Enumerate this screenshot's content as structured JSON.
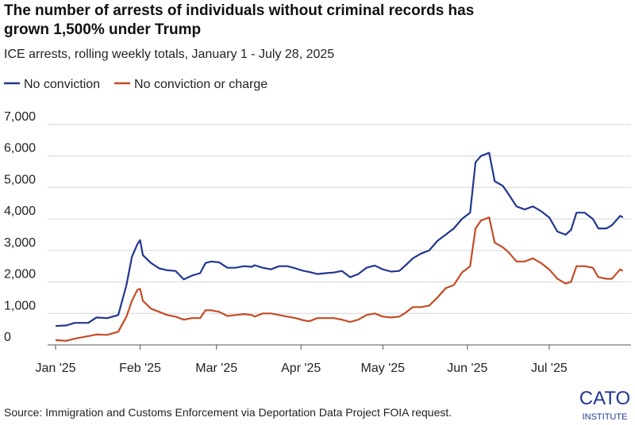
{
  "chart_data": {
    "type": "line",
    "title": "The number of arrests of individuals without criminal records has grown 1,500% under Trump",
    "subtitle": "ICE arrests, rolling weekly totals, January 1 - July 28, 2025",
    "source": "Source: Immigration and Customs Enforcement via Deportation Data Project FOIA request.",
    "logo": {
      "top": "CATO",
      "bottom": "INSTITUTE"
    },
    "x": [
      "2025-01-01",
      "2025-01-05",
      "2025-01-08",
      "2025-01-13",
      "2025-01-16",
      "2025-01-20",
      "2025-01-24",
      "2025-01-27",
      "2025-01-29",
      "2025-01-31",
      "2025-02-01",
      "2025-02-02",
      "2025-02-05",
      "2025-02-08",
      "2025-02-11",
      "2025-02-14",
      "2025-02-17",
      "2025-02-20",
      "2025-02-23",
      "2025-02-25",
      "2025-02-27",
      "2025-03-02",
      "2025-03-05",
      "2025-03-08",
      "2025-03-11",
      "2025-03-14",
      "2025-03-15",
      "2025-03-18",
      "2025-03-21",
      "2025-03-24",
      "2025-03-27",
      "2025-03-30",
      "2025-04-02",
      "2025-04-04",
      "2025-04-07",
      "2025-04-10",
      "2025-04-13",
      "2025-04-16",
      "2025-04-19",
      "2025-04-22",
      "2025-04-25",
      "2025-04-28",
      "2025-05-01",
      "2025-05-04",
      "2025-05-07",
      "2025-05-09",
      "2025-05-12",
      "2025-05-15",
      "2025-05-18",
      "2025-05-21",
      "2025-05-24",
      "2025-05-27",
      "2025-05-30",
      "2025-06-02",
      "2025-06-04",
      "2025-06-06",
      "2025-06-09",
      "2025-06-11",
      "2025-06-14",
      "2025-06-16",
      "2025-06-19",
      "2025-06-22",
      "2025-06-25",
      "2025-06-28",
      "2025-07-01",
      "2025-07-04",
      "2025-07-07",
      "2025-07-09",
      "2025-07-11",
      "2025-07-14",
      "2025-07-17",
      "2025-07-19",
      "2025-07-22",
      "2025-07-24",
      "2025-07-27",
      "2025-07-28"
    ],
    "series": [
      {
        "name": "No conviction",
        "color": "#22378f",
        "values": [
          600,
          620,
          700,
          700,
          870,
          850,
          950,
          1900,
          2800,
          3200,
          3330,
          2850,
          2600,
          2430,
          2370,
          2350,
          2080,
          2200,
          2280,
          2600,
          2650,
          2620,
          2450,
          2450,
          2500,
          2480,
          2530,
          2450,
          2400,
          2500,
          2500,
          2430,
          2350,
          2320,
          2250,
          2280,
          2300,
          2350,
          2150,
          2250,
          2450,
          2520,
          2400,
          2330,
          2350,
          2500,
          2750,
          2900,
          3000,
          3300,
          3500,
          3700,
          4000,
          4200,
          5800,
          6000,
          6100,
          5200,
          5050,
          4800,
          4400,
          4300,
          4400,
          4250,
          4050,
          3600,
          3500,
          3650,
          4200,
          4200,
          4000,
          3700,
          3700,
          3800,
          4100,
          4050
        ]
      },
      {
        "name": "No conviction or charge",
        "color": "#c44b25",
        "values": [
          150,
          130,
          200,
          280,
          330,
          320,
          420,
          900,
          1400,
          1750,
          1780,
          1400,
          1150,
          1050,
          950,
          900,
          800,
          850,
          850,
          1100,
          1100,
          1050,
          920,
          950,
          980,
          950,
          900,
          1000,
          1000,
          950,
          900,
          850,
          780,
          750,
          850,
          850,
          850,
          800,
          730,
          800,
          950,
          1000,
          900,
          870,
          900,
          1000,
          1200,
          1200,
          1250,
          1500,
          1800,
          1900,
          2300,
          2500,
          3700,
          3950,
          4050,
          3250,
          3100,
          2950,
          2650,
          2650,
          2750,
          2600,
          2400,
          2100,
          1950,
          2000,
          2500,
          2500,
          2450,
          2150,
          2100,
          2100,
          2400,
          2350
        ]
      }
    ],
    "xlim": [
      "2025-01-01",
      "2025-07-31"
    ],
    "xticks": [
      {
        "value": "2025-01-01",
        "label": "Jan '25"
      },
      {
        "value": "2025-02-01",
        "label": "Feb '25"
      },
      {
        "value": "2025-03-01",
        "label": "Mar '25"
      },
      {
        "value": "2025-04-01",
        "label": "Apr '25"
      },
      {
        "value": "2025-05-01",
        "label": "May '25"
      },
      {
        "value": "2025-06-01",
        "label": "Jun '25"
      },
      {
        "value": "2025-07-01",
        "label": "Jul '25"
      }
    ],
    "ylim": [
      0,
      7000
    ],
    "yticks": [
      0,
      {
        "value": 1000,
        "label": "1,000"
      },
      {
        "value": 2000,
        "label": "2,000"
      },
      {
        "value": 3000,
        "label": "3,000"
      },
      {
        "value": 4000,
        "label": "4,000"
      },
      {
        "value": 5000,
        "label": "5,000"
      },
      {
        "value": 6000,
        "label": "6,000"
      },
      {
        "value": 7000,
        "label": "7,000"
      }
    ],
    "grid": true
  }
}
